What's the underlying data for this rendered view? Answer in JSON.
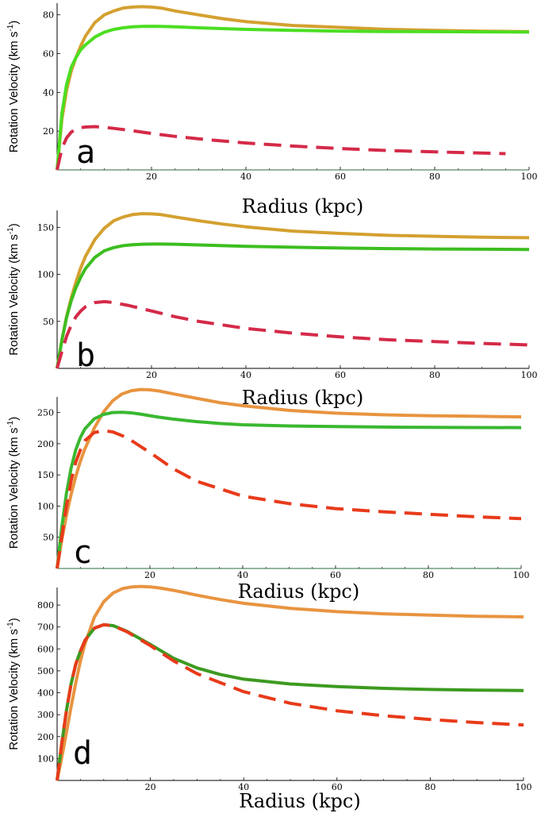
{
  "chart_data": [
    {
      "type": "line",
      "panel_label": "a",
      "xlabel": "Radius (kpc)",
      "ylabel": "Rotation Velocity (km s",
      "ylabel_sup": "-1",
      "ylabel_close": ")",
      "xlim": [
        0,
        100
      ],
      "ylim": [
        0,
        86
      ],
      "x_ticks": [
        20,
        40,
        60,
        80,
        100
      ],
      "y_ticks": [
        20,
        40,
        60,
        80
      ],
      "x_tick_labels": [
        "20",
        "40",
        "60",
        "80",
        "100"
      ],
      "y_tick_labels": [
        "20",
        "40",
        "60",
        "80"
      ],
      "series": [
        {
          "color": "#d4a030",
          "dashed": false,
          "x": [
            0,
            1,
            2,
            3,
            4,
            5,
            6,
            8,
            10,
            12,
            14,
            16,
            18,
            20,
            22,
            25,
            30,
            35,
            40,
            50,
            60,
            70,
            80,
            90,
            100
          ],
          "y": [
            0,
            26,
            41,
            51,
            58,
            64,
            69,
            76,
            80,
            82,
            83.5,
            84,
            84.2,
            84,
            83.5,
            82,
            80,
            78,
            76.5,
            74.5,
            73.5,
            72.5,
            72,
            71.6,
            71.3
          ]
        },
        {
          "color": "#4cde22",
          "dashed": false,
          "x": [
            0,
            1,
            2,
            3,
            4,
            5,
            6,
            8,
            10,
            12,
            14,
            16,
            18,
            20,
            22,
            25,
            30,
            35,
            40,
            50,
            60,
            70,
            80,
            90,
            100
          ],
          "y": [
            0,
            29,
            44,
            53,
            58,
            62,
            64.5,
            68.5,
            71,
            72.5,
            73.3,
            73.8,
            74,
            74.1,
            74,
            73.8,
            73.3,
            72.9,
            72.5,
            72,
            71.6,
            71.4,
            71.3,
            71.2,
            71.1
          ]
        },
        {
          "color": "#d42a48",
          "dashed": true,
          "x": [
            0,
            1,
            2,
            3,
            4,
            5,
            6,
            8,
            10,
            12,
            15,
            20,
            25,
            30,
            40,
            50,
            60,
            70,
            80,
            90,
            95
          ],
          "y": [
            0,
            11,
            16.5,
            19.5,
            21,
            21.8,
            22.1,
            22.3,
            22,
            21.4,
            20.5,
            18.8,
            17.3,
            16,
            13.9,
            12.3,
            11,
            10,
            9.3,
            8.7,
            8.4
          ]
        }
      ]
    },
    {
      "type": "line",
      "panel_label": "b",
      "xlabel": "Radius (kpc)",
      "ylabel": "Rotation Velocity (km s",
      "ylabel_sup": "-1",
      "ylabel_close": ")",
      "xlim": [
        0,
        100
      ],
      "ylim": [
        0,
        168
      ],
      "x_ticks": [
        20,
        40,
        60,
        80,
        100
      ],
      "y_ticks": [
        50,
        100,
        150
      ],
      "x_tick_labels": [
        "20",
        "40",
        "60",
        "80",
        "100"
      ],
      "y_tick_labels": [
        "50",
        "100",
        "150"
      ],
      "series": [
        {
          "color": "#d4a030",
          "dashed": false,
          "x": [
            0,
            1,
            2,
            3,
            4,
            5,
            6,
            8,
            10,
            12,
            14,
            16,
            18,
            20,
            22,
            25,
            30,
            35,
            40,
            50,
            60,
            70,
            80,
            90,
            100
          ],
          "y": [
            0,
            30,
            55,
            75,
            92,
            107,
            119,
            137,
            149,
            157,
            161,
            163.5,
            164.5,
            164.3,
            163.5,
            161,
            157,
            153.5,
            150.5,
            146,
            143.5,
            141.5,
            140.5,
            139.5,
            139
          ]
        },
        {
          "color": "#3dbe20",
          "dashed": false,
          "x": [
            0,
            1,
            2,
            3,
            4,
            5,
            6,
            8,
            10,
            12,
            14,
            16,
            18,
            20,
            22,
            25,
            30,
            35,
            40,
            50,
            60,
            70,
            80,
            90,
            100
          ],
          "y": [
            0,
            30,
            54,
            72,
            86,
            97,
            106,
            118,
            125,
            128.5,
            130.5,
            131.5,
            132,
            132.2,
            132.2,
            132,
            131.3,
            130.5,
            129.8,
            128.8,
            128,
            127.4,
            127,
            126.7,
            126.5
          ]
        },
        {
          "color": "#d42a48",
          "dashed": true,
          "x": [
            0,
            1,
            2,
            3,
            4,
            5,
            6,
            8,
            10,
            12,
            15,
            20,
            25,
            30,
            40,
            50,
            60,
            70,
            80,
            90,
            100
          ],
          "y": [
            0,
            18,
            34,
            46,
            55,
            61,
            65.5,
            70,
            71,
            70,
            67,
            61,
            55,
            50,
            42.5,
            37.5,
            33.5,
            30.5,
            28.5,
            26.5,
            25
          ]
        }
      ]
    },
    {
      "type": "line",
      "panel_label": "c",
      "xlabel": "Radius (kpc)",
      "ylabel": "Rotation Velocity (km s",
      "ylabel_sup": "-1",
      "ylabel_close": ")",
      "xlim": [
        0,
        100
      ],
      "ylim": [
        0,
        275
      ],
      "x_ticks": [
        20,
        40,
        60,
        80,
        100
      ],
      "y_ticks": [
        50,
        100,
        150,
        200,
        250
      ],
      "x_tick_labels": [
        "20",
        "40",
        "60",
        "80",
        "100"
      ],
      "y_tick_labels": [
        "50",
        "100",
        "150",
        "200",
        "250"
      ],
      "series": [
        {
          "color": "#e89440",
          "dashed": false,
          "x": [
            0,
            1,
            2,
            3,
            4,
            5,
            6,
            8,
            10,
            12,
            14,
            16,
            18,
            20,
            22,
            25,
            30,
            35,
            40,
            50,
            60,
            70,
            80,
            90,
            100
          ],
          "y": [
            0,
            45,
            85,
            118,
            147,
            172,
            192,
            225,
            251,
            269,
            280,
            285,
            287,
            286.5,
            284.5,
            280,
            273,
            266,
            261,
            253.5,
            249,
            246.5,
            245,
            244,
            243
          ]
        },
        {
          "color": "#3ab830",
          "dashed": false,
          "x": [
            0,
            1,
            2,
            3,
            4,
            5,
            6,
            8,
            10,
            12,
            14,
            16,
            18,
            20,
            22,
            25,
            30,
            35,
            40,
            50,
            60,
            70,
            80,
            90,
            100
          ],
          "y": [
            0,
            65,
            120,
            160,
            190,
            210,
            224,
            240,
            247,
            250,
            250.5,
            249.5,
            247.5,
            245,
            242.5,
            239.5,
            235.5,
            232.5,
            230.5,
            228.5,
            227.5,
            226.8,
            226.3,
            226,
            225.8
          ]
        },
        {
          "color": "#e83a1a",
          "dashed": true,
          "x": [
            0,
            1,
            2,
            3,
            4,
            5,
            6,
            8,
            10,
            12,
            15,
            20,
            25,
            30,
            40,
            50,
            60,
            70,
            80,
            90,
            100
          ],
          "y": [
            0,
            50,
            100,
            140,
            170,
            190,
            205,
            218,
            221,
            219,
            210,
            186,
            160,
            140,
            116,
            104,
            96,
            91,
            87,
            83,
            80
          ]
        }
      ]
    },
    {
      "type": "line",
      "panel_label": "d",
      "xlabel": "Radius (kpc)",
      "ylabel": "Rotation Velocity (km s",
      "ylabel_sup": "-1",
      "ylabel_close": ")",
      "xlim": [
        0,
        100
      ],
      "ylim": [
        0,
        880
      ],
      "x_ticks": [
        20,
        40,
        60,
        80,
        100
      ],
      "y_ticks": [
        100,
        200,
        300,
        400,
        500,
        600,
        700,
        800
      ],
      "x_tick_labels": [
        "20",
        "40",
        "60",
        "80",
        "100"
      ],
      "y_tick_labels": [
        "100",
        "200",
        "300",
        "400",
        "500",
        "600",
        "700",
        "800"
      ],
      "series": [
        {
          "color": "#e89440",
          "dashed": false,
          "x": [
            0,
            1,
            2,
            3,
            4,
            5,
            6,
            8,
            10,
            12,
            14,
            16,
            18,
            20,
            22,
            25,
            30,
            35,
            40,
            50,
            60,
            70,
            80,
            90,
            100
          ],
          "y": [
            0,
            105,
            220,
            335,
            445,
            545,
            625,
            745,
            815,
            855,
            875,
            883,
            885,
            883,
            878,
            867,
            845,
            825,
            808,
            785,
            770,
            760,
            754,
            749,
            746
          ]
        },
        {
          "color": "#3d9a20",
          "dashed": false,
          "x": [
            0,
            1,
            2,
            3,
            4,
            5,
            6,
            8,
            10,
            12,
            15,
            20,
            25,
            30,
            35,
            40,
            50,
            60,
            70,
            80,
            90,
            100
          ],
          "y": [
            0,
            170,
            320,
            440,
            530,
            590,
            640,
            695,
            710,
            706,
            680,
            620,
            557,
            513,
            483,
            462,
            440,
            428,
            420,
            415,
            412,
            410
          ]
        },
        {
          "color": "#e83a1a",
          "dashed": true,
          "x": [
            0,
            1,
            2,
            3,
            4,
            5,
            6,
            8,
            10,
            12,
            15,
            20,
            25,
            30,
            40,
            50,
            60,
            70,
            80,
            90,
            100
          ],
          "y": [
            0,
            170,
            320,
            440,
            530,
            590,
            640,
            695,
            710,
            706,
            678,
            615,
            545,
            487,
            405,
            352,
            318,
            295,
            278,
            264,
            253
          ]
        }
      ]
    }
  ]
}
